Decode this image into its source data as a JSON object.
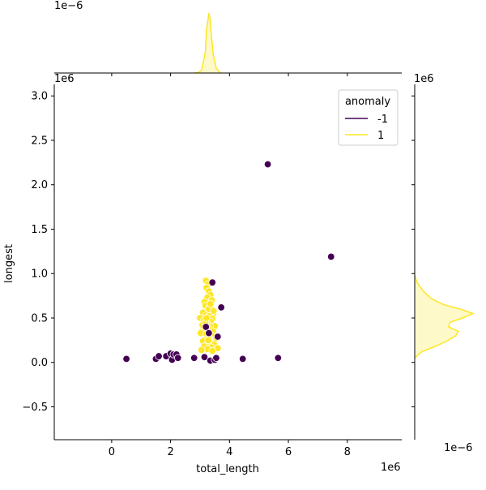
{
  "chart_data": {
    "type": "scatter",
    "title": "",
    "xlabel": "total_length",
    "ylabel": "longest",
    "x_multiplier": "1e6",
    "y_multiplier": "1e6",
    "x_ticks": [
      "0",
      "2",
      "4",
      "6",
      "8"
    ],
    "y_ticks": [
      "−0.5",
      "0.0",
      "0.5",
      "1.0",
      "1.5",
      "2.0",
      "2.5",
      "3.0"
    ],
    "xlim": [
      -1.95,
      9.85
    ],
    "ylim": [
      -0.87,
      3.13
    ],
    "top_marginal_multiplier": "1e−6",
    "right_marginal_multiplier": "1e−6",
    "right_marginal_axis_multiplier": "1e6",
    "legend": {
      "title": "anomaly",
      "placement": "top-right",
      "entries": [
        "-1",
        "1"
      ]
    },
    "colors": {
      "-1": "#440154",
      "1": "#fde725"
    },
    "series": [
      {
        "name": "-1",
        "x": [
          0.5,
          1.5,
          1.6,
          1.85,
          2.0,
          2.05,
          2.1,
          2.2,
          2.25,
          2.8,
          3.15,
          3.2,
          3.3,
          3.35,
          3.42,
          3.5,
          3.55,
          3.6,
          3.72,
          4.45,
          5.3,
          5.65,
          7.45
        ],
        "y": [
          0.04,
          0.04,
          0.07,
          0.07,
          0.1,
          0.03,
          0.09,
          0.09,
          0.05,
          0.05,
          0.06,
          0.4,
          0.33,
          0.02,
          0.9,
          0.03,
          0.05,
          0.29,
          0.62,
          0.04,
          2.23,
          0.05,
          1.19
        ]
      },
      {
        "name": "1",
        "x": [
          3.2,
          3.28,
          3.22,
          3.3,
          3.35,
          3.25,
          3.4,
          3.15,
          3.05,
          3.18,
          3.32,
          3.38,
          3.27,
          3.1,
          3.45,
          3.2,
          3.3,
          3.0,
          3.42,
          3.12,
          3.36,
          3.24,
          3.08,
          3.5,
          3.34,
          3.28,
          3.16,
          3.44,
          3.02,
          3.22,
          3.4,
          3.3,
          3.55,
          3.2,
          3.1,
          3.35,
          3.26,
          3.48,
          3.14,
          3.38,
          3.6,
          3.25,
          3.05,
          3.42,
          3.3,
          3.18,
          3.36,
          3.22,
          3.28,
          3.46
        ],
        "y": [
          0.92,
          0.88,
          0.84,
          0.8,
          0.76,
          0.73,
          0.7,
          0.68,
          0.35,
          0.64,
          0.62,
          0.6,
          0.58,
          0.56,
          0.55,
          0.53,
          0.52,
          0.5,
          0.49,
          0.47,
          0.46,
          0.44,
          0.42,
          0.41,
          0.4,
          0.38,
          0.36,
          0.35,
          0.33,
          0.32,
          0.3,
          0.28,
          0.27,
          0.26,
          0.24,
          0.22,
          0.21,
          0.2,
          0.18,
          0.17,
          0.16,
          0.15,
          0.14,
          0.13,
          0.6,
          0.45,
          0.66,
          0.5,
          0.25,
          0.58
        ]
      }
    ],
    "top_marginal": {
      "series": "1",
      "x": [
        2.8,
        2.95,
        3.05,
        3.12,
        3.18,
        3.22,
        3.26,
        3.3,
        3.34,
        3.38,
        3.45,
        3.55,
        3.7
      ],
      "density": [
        0.0,
        0.01,
        0.05,
        0.2,
        0.35,
        0.72,
        0.85,
        1.0,
        0.9,
        0.65,
        0.3,
        0.08,
        0.0
      ]
    },
    "right_marginal": {
      "series": "1",
      "y": [
        0.05,
        0.12,
        0.18,
        0.24,
        0.3,
        0.35,
        0.4,
        0.45,
        0.5,
        0.55,
        0.6,
        0.65,
        0.72,
        0.8,
        0.9,
        0.98
      ],
      "density": [
        0.0,
        0.12,
        0.35,
        0.55,
        0.7,
        0.75,
        0.58,
        0.6,
        0.82,
        1.0,
        0.78,
        0.5,
        0.28,
        0.15,
        0.04,
        0.0
      ]
    }
  }
}
